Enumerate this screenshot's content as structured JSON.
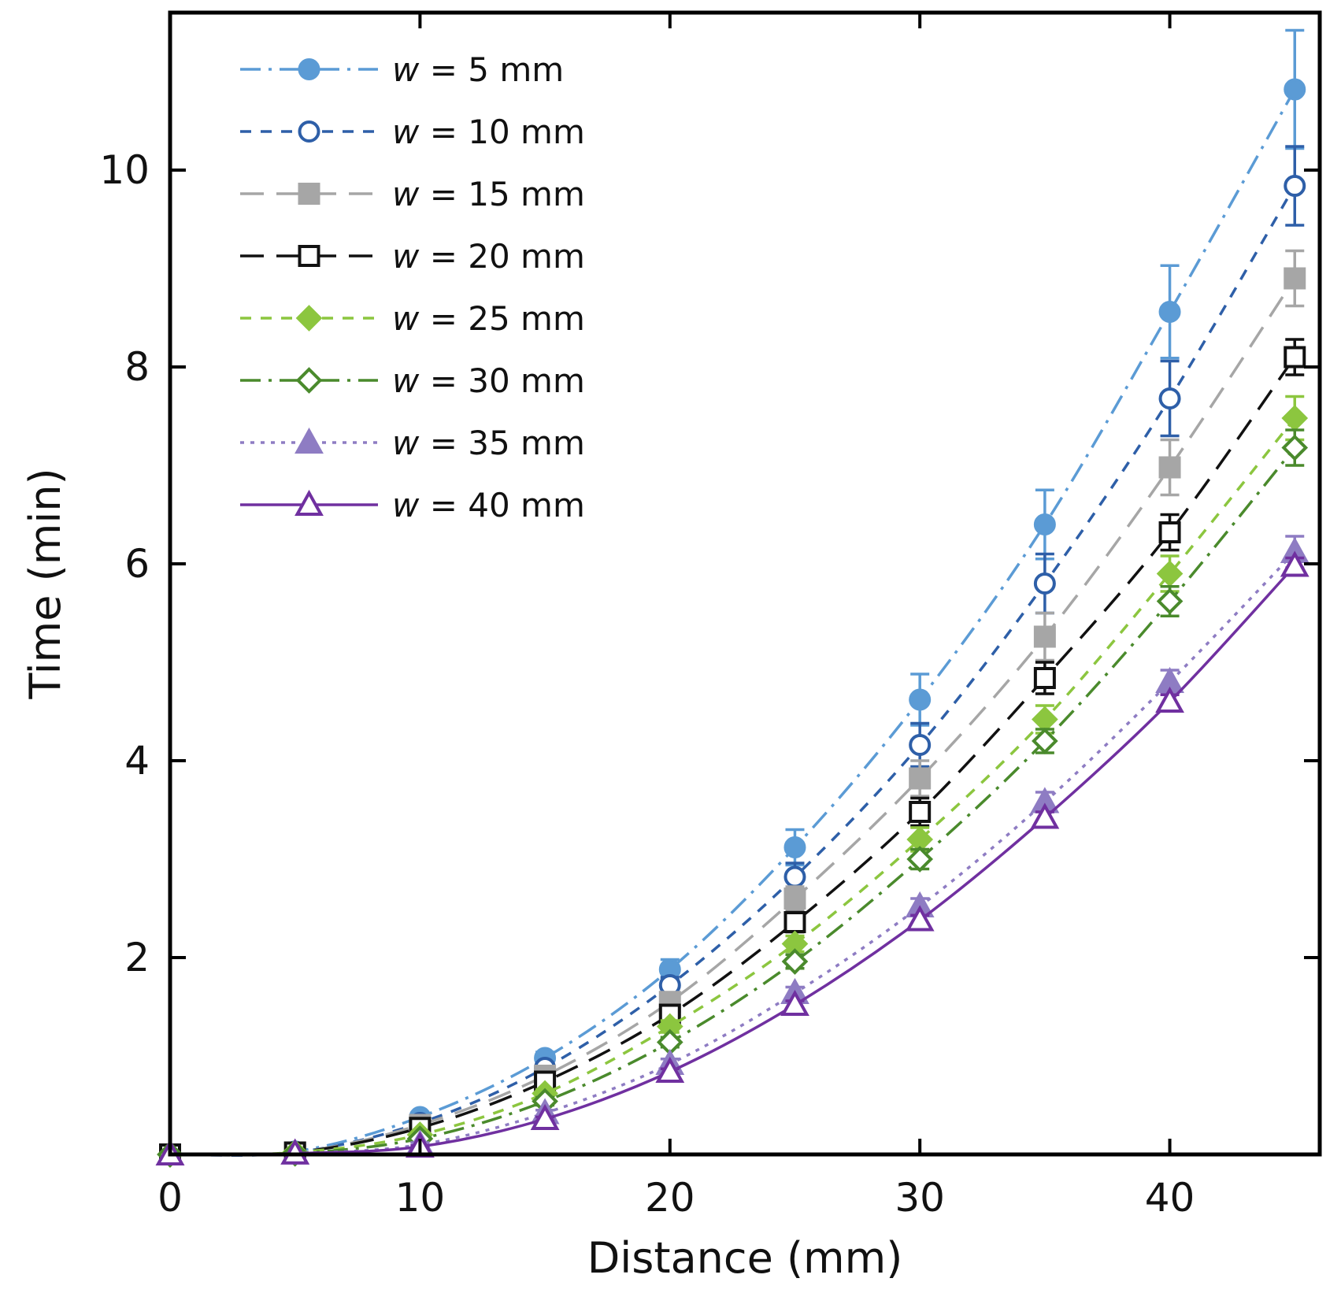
{
  "chart_data": {
    "type": "line",
    "title": "",
    "xlabel": "Distance (mm)",
    "ylabel": "Time (min)",
    "xlim": [
      0,
      46
    ],
    "ylim": [
      0,
      11.6
    ],
    "xticks": [
      0,
      10,
      20,
      30,
      40
    ],
    "yticks": [
      2,
      4,
      6,
      8,
      10
    ],
    "x": [
      0,
      5,
      10,
      15,
      20,
      25,
      30,
      35,
      40,
      45
    ],
    "legend_position": "top-left",
    "legend_prefix": "w",
    "series": [
      {
        "name": "w = 5 mm",
        "label_value": "= 5 mm",
        "color": "#5b9bd5",
        "dash": "dashdot",
        "marker": "circle",
        "filled": true,
        "values": [
          0,
          0.03,
          0.38,
          0.98,
          1.88,
          3.12,
          4.62,
          6.4,
          8.56,
          10.82
        ],
        "errors": [
          0,
          0,
          0.04,
          0.06,
          0.1,
          0.18,
          0.26,
          0.35,
          0.47,
          0.6
        ]
      },
      {
        "name": "w = 10 mm",
        "label_value": "= 10 mm",
        "color": "#2e5fa8",
        "dash": "dashed",
        "marker": "circle",
        "filled": false,
        "values": [
          0,
          0.02,
          0.32,
          0.88,
          1.72,
          2.82,
          4.16,
          5.8,
          7.68,
          9.84
        ],
        "errors": [
          0,
          0,
          0.03,
          0.05,
          0.08,
          0.14,
          0.22,
          0.3,
          0.38,
          0.4
        ]
      },
      {
        "name": "w = 15 mm",
        "label_value": "= 15 mm",
        "color": "#a6a6a6",
        "dash": "longdash",
        "marker": "square",
        "filled": true,
        "values": [
          0,
          0.02,
          0.3,
          0.8,
          1.55,
          2.6,
          3.82,
          5.26,
          6.98,
          8.9
        ],
        "errors": [
          0,
          0,
          0.03,
          0.05,
          0.07,
          0.12,
          0.18,
          0.24,
          0.28,
          0.28
        ]
      },
      {
        "name": "w = 20 mm",
        "label_value": "= 20 mm",
        "color": "#111111",
        "dash": "longdash",
        "marker": "square",
        "filled": false,
        "values": [
          0,
          0.02,
          0.27,
          0.74,
          1.42,
          2.36,
          3.48,
          4.84,
          6.32,
          8.1
        ],
        "errors": [
          0,
          0,
          0.03,
          0.04,
          0.06,
          0.1,
          0.14,
          0.16,
          0.18,
          0.18
        ]
      },
      {
        "name": "w = 25 mm",
        "label_value": "= 25 mm",
        "color": "#8cc63f",
        "dash": "dashed",
        "marker": "diamond",
        "filled": true,
        "values": [
          0,
          0.02,
          0.2,
          0.62,
          1.3,
          2.14,
          3.2,
          4.42,
          5.9,
          7.48
        ],
        "errors": [
          0,
          0,
          0.02,
          0.04,
          0.06,
          0.08,
          0.12,
          0.14,
          0.18,
          0.22
        ]
      },
      {
        "name": "w = 30 mm",
        "label_value": "= 30 mm",
        "color": "#4a8a2c",
        "dash": "dashdot",
        "marker": "diamond",
        "filled": false,
        "values": [
          0,
          0.01,
          0.16,
          0.54,
          1.14,
          1.96,
          3.0,
          4.2,
          5.62,
          7.18
        ],
        "errors": [
          0,
          0,
          0.02,
          0.04,
          0.05,
          0.07,
          0.1,
          0.12,
          0.15,
          0.18
        ]
      },
      {
        "name": "w = 35 mm",
        "label_value": "= 35 mm",
        "color": "#8e7cc3",
        "dash": "dotted",
        "marker": "triangle",
        "filled": true,
        "values": [
          0,
          0.01,
          0.1,
          0.42,
          0.92,
          1.64,
          2.52,
          3.58,
          4.8,
          6.12
        ],
        "errors": [
          0,
          0,
          0.02,
          0.03,
          0.05,
          0.06,
          0.08,
          0.1,
          0.12,
          0.16
        ]
      },
      {
        "name": "w = 40 mm",
        "label_value": "= 40 mm",
        "color": "#7030a0",
        "dash": "solid",
        "marker": "triangle",
        "filled": false,
        "values": [
          0,
          0.01,
          0.08,
          0.36,
          0.84,
          1.52,
          2.38,
          3.42,
          4.6,
          5.98
        ],
        "errors": [
          0,
          0,
          0.01,
          0.02,
          0.03,
          0.04,
          0.05,
          0.06,
          0.07,
          0.08
        ]
      }
    ]
  }
}
